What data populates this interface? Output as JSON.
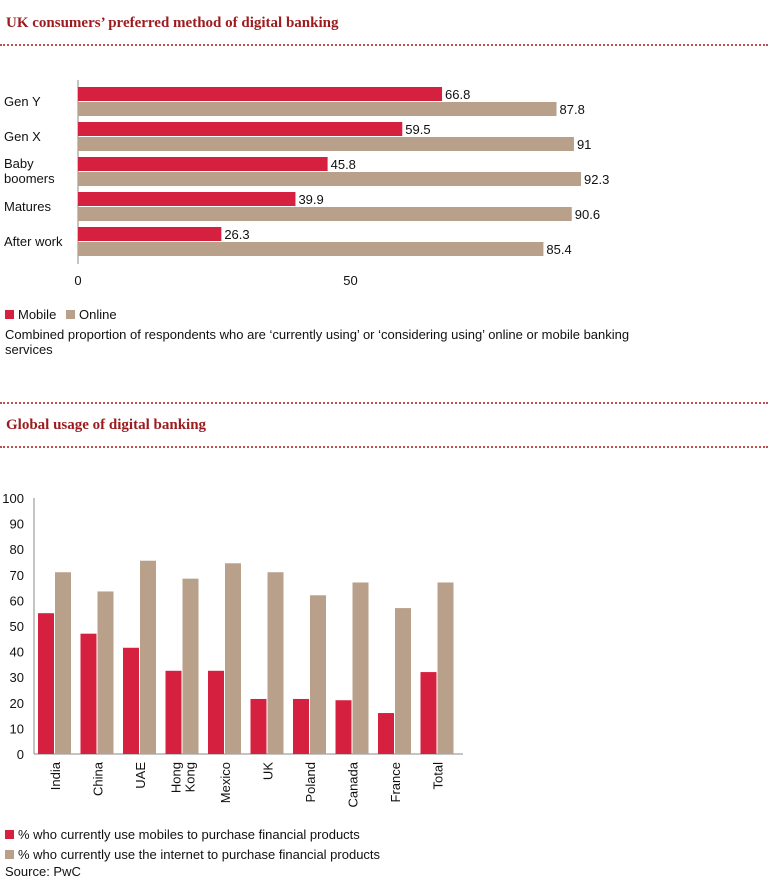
{
  "colors": {
    "mobile": "#d5213f",
    "online": "#b8a08a",
    "title": "#9b1b1e",
    "divider": "#c0504d"
  },
  "chart1": {
    "title": "UK consumers’ preferred method of digital banking",
    "legend": {
      "mobile": "Mobile",
      "online": "Online"
    },
    "note": "Combined proportion of respondents who are ‘currently using’ or ‘considering using’ online or mobile banking services"
  },
  "chart2": {
    "title": "Global usage of digital banking",
    "legend": {
      "mobile": "% who currently use mobiles to purchase financial products",
      "online": "% who currently use the internet to purchase financial products"
    },
    "source": "Source: PwC"
  },
  "chart_data": [
    {
      "type": "bar",
      "orientation": "horizontal",
      "title": "UK consumers’ preferred method of digital banking",
      "categories": [
        "Gen Y",
        "Gen X",
        "Baby boomers",
        "Matures",
        "After work"
      ],
      "category_lines": [
        [
          "Gen Y"
        ],
        [
          "Gen X"
        ],
        [
          "Baby",
          "boomers"
        ],
        [
          "Matures"
        ],
        [
          "After work"
        ]
      ],
      "series": [
        {
          "name": "Mobile",
          "values": [
            66.8,
            59.5,
            45.8,
            39.9,
            26.3
          ]
        },
        {
          "name": "Online",
          "values": [
            87.8,
            91,
            92.3,
            90.6,
            85.4
          ]
        }
      ],
      "value_labels": {
        "Mobile": [
          "66.8",
          "59.5",
          "45.8",
          "39.9",
          "26.3"
        ],
        "Online": [
          "87.8",
          "91",
          "92.3",
          "90.6",
          "85.4"
        ]
      },
      "xticks": [
        0,
        50
      ],
      "xlim": [
        0,
        100
      ],
      "grid": false,
      "legend_position": "bottom-left"
    },
    {
      "type": "bar",
      "orientation": "vertical",
      "title": "Global usage of digital banking",
      "categories": [
        "India",
        "China",
        "UAE",
        "Hong Kong",
        "Mexico",
        "UK",
        "Poland",
        "Canada",
        "France",
        "Total"
      ],
      "category_lines": [
        [
          "India"
        ],
        [
          "China"
        ],
        [
          "UAE"
        ],
        [
          "Hong",
          "Kong"
        ],
        [
          "Mexico"
        ],
        [
          "UK"
        ],
        [
          "Poland"
        ],
        [
          "Canada"
        ],
        [
          "France"
        ],
        [
          "Total"
        ]
      ],
      "series": [
        {
          "name": "% who currently use mobiles to purchase financial products",
          "values": [
            55,
            47,
            41.5,
            32.5,
            32.5,
            21.5,
            21.5,
            21,
            16,
            32
          ]
        },
        {
          "name": "% who currently use the internet to purchase financial products",
          "values": [
            71,
            63.5,
            75.5,
            68.5,
            74.5,
            71,
            62,
            67,
            57,
            67
          ]
        }
      ],
      "yticks": [
        0,
        10,
        20,
        30,
        40,
        50,
        60,
        70,
        80,
        90,
        100
      ],
      "ylim": [
        0,
        100
      ],
      "grid": false,
      "legend_position": "bottom-left"
    }
  ]
}
